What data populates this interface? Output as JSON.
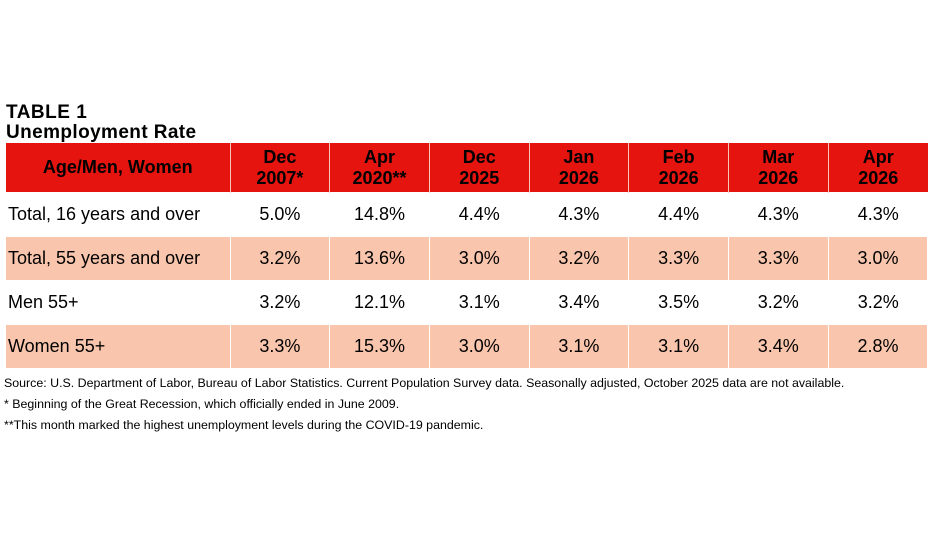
{
  "table": {
    "title": "TABLE 1",
    "subtitle": "Unemployment Rate",
    "header": {
      "label": "Age/Men, Women",
      "columns": [
        {
          "line1": "Dec",
          "line2": "2007*"
        },
        {
          "line1": "Apr",
          "line2": "2020**"
        },
        {
          "line1": "Dec",
          "line2": "2025"
        },
        {
          "line1": "Jan",
          "line2": "2026"
        },
        {
          "line1": "Feb",
          "line2": "2026"
        },
        {
          "line1": "Mar",
          "line2": "2026"
        },
        {
          "line1": "Apr",
          "line2": "2026"
        }
      ]
    },
    "rows": [
      {
        "label": "Total, 16 years and over",
        "values": [
          "5.0%",
          "14.8%",
          "4.4%",
          "4.3%",
          "4.4%",
          "4.3%",
          "4.3%"
        ]
      },
      {
        "label": "Total, 55 years and over",
        "values": [
          "3.2%",
          "13.6%",
          "3.0%",
          "3.2%",
          "3.3%",
          "3.3%",
          "3.0%"
        ]
      },
      {
        "label": "Men 55+",
        "values": [
          "3.2%",
          "12.1%",
          "3.1%",
          "3.4%",
          "3.5%",
          "3.2%",
          "3.2%"
        ]
      },
      {
        "label": "Women 55+",
        "values": [
          "3.3%",
          "15.3%",
          "3.0%",
          "3.1%",
          "3.1%",
          "3.4%",
          "2.8%"
        ]
      }
    ],
    "colors": {
      "header_bg": "#e5140f",
      "shaded_row_bg": "#f9c6ad"
    }
  },
  "footnotes": {
    "source": "Source: U.S. Department of Labor, Bureau of Labor Statistics. Current Population Survey data. Seasonally adjusted, October 2025 data are not available.",
    "note1": "* Beginning of the Great Recession, which officially ended in June 2009.",
    "note2": "**This month marked the highest unemployment levels during the COVID-19 pandemic."
  }
}
